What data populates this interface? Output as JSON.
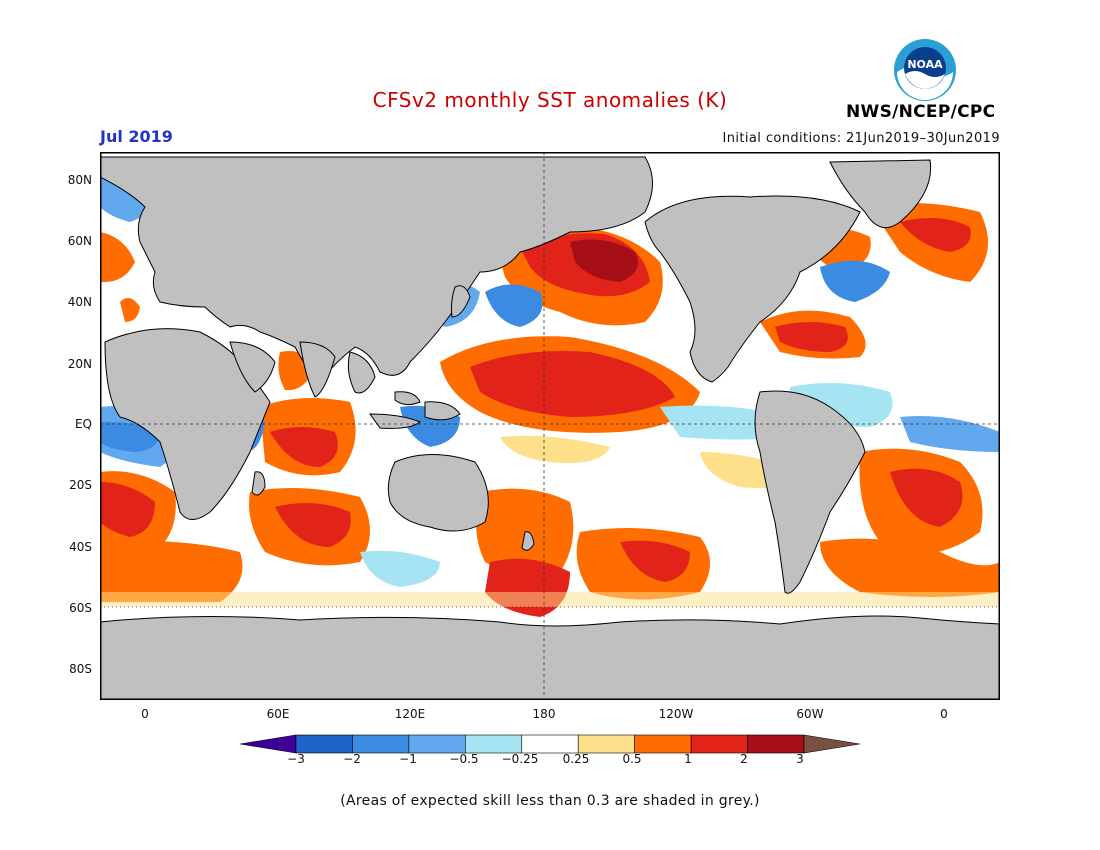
{
  "header": {
    "title": "CFSv2 monthly SST anomalies (K)",
    "month": "Jul 2019",
    "initial_conditions": "Initial conditions: 21Jun2019–30Jun2019",
    "org": "NWS/NCEP/CPC",
    "logo_text": "NOAA",
    "logo_icon": "noaa-logo"
  },
  "map": {
    "lat_labels": [
      "80N",
      "60N",
      "40N",
      "20N",
      "EQ",
      "20S",
      "40S",
      "60S",
      "80S"
    ],
    "lon_labels": [
      "0",
      "60E",
      "120E",
      "180",
      "120W",
      "60W",
      "0"
    ],
    "land_color": "#c0c0c0",
    "ocean_color": "#ffffff"
  },
  "colorbar": {
    "ticks": [
      "−3",
      "−2",
      "−1",
      "−0.5",
      "−0.25",
      "0.25",
      "0.5",
      "1",
      "2",
      "3"
    ],
    "colors": [
      "#3d0099",
      "#1f63c8",
      "#3b8be2",
      "#62a8ef",
      "#a6e4f3",
      "#ffffff",
      "#ffe08a",
      "#ff6d00",
      "#e2231a",
      "#a50f15",
      "#7a5040"
    ]
  },
  "footnote": "(Areas of expected skill less than 0.3 are shaded in grey.)"
}
